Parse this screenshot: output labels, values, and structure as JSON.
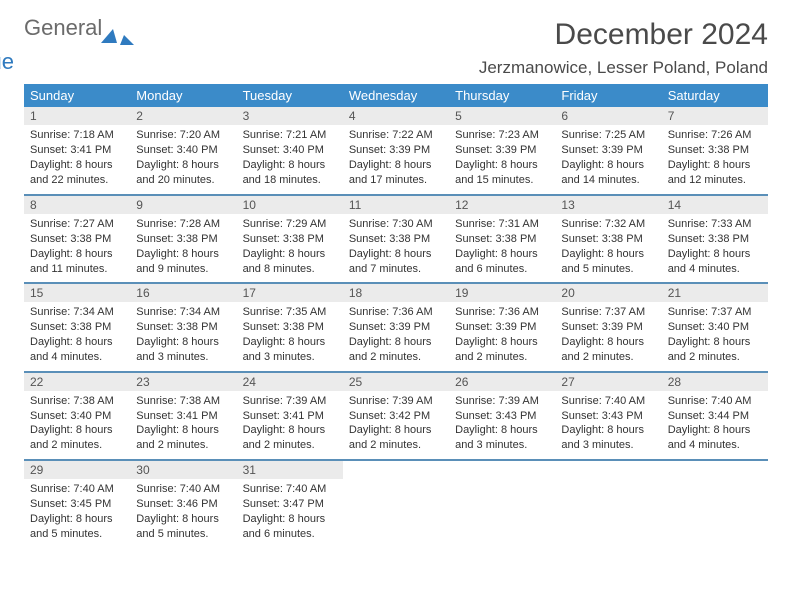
{
  "brand": {
    "text1": "General",
    "text2": "Blue"
  },
  "header": {
    "month_title": "December 2024",
    "location": "Jerzmanowice, Lesser Poland, Poland"
  },
  "style": {
    "header_bg": "#3b8bc9",
    "header_fg": "#ffffff",
    "row_divider": "#5a8fb8",
    "daynum_bg": "#ebebeb",
    "body_fontsize": 11
  },
  "weekdays": [
    "Sunday",
    "Monday",
    "Tuesday",
    "Wednesday",
    "Thursday",
    "Friday",
    "Saturday"
  ],
  "days": [
    {
      "n": "1",
      "sr": "7:18 AM",
      "ss": "3:41 PM",
      "dl": "8 hours and 22 minutes."
    },
    {
      "n": "2",
      "sr": "7:20 AM",
      "ss": "3:40 PM",
      "dl": "8 hours and 20 minutes."
    },
    {
      "n": "3",
      "sr": "7:21 AM",
      "ss": "3:40 PM",
      "dl": "8 hours and 18 minutes."
    },
    {
      "n": "4",
      "sr": "7:22 AM",
      "ss": "3:39 PM",
      "dl": "8 hours and 17 minutes."
    },
    {
      "n": "5",
      "sr": "7:23 AM",
      "ss": "3:39 PM",
      "dl": "8 hours and 15 minutes."
    },
    {
      "n": "6",
      "sr": "7:25 AM",
      "ss": "3:39 PM",
      "dl": "8 hours and 14 minutes."
    },
    {
      "n": "7",
      "sr": "7:26 AM",
      "ss": "3:38 PM",
      "dl": "8 hours and 12 minutes."
    },
    {
      "n": "8",
      "sr": "7:27 AM",
      "ss": "3:38 PM",
      "dl": "8 hours and 11 minutes."
    },
    {
      "n": "9",
      "sr": "7:28 AM",
      "ss": "3:38 PM",
      "dl": "8 hours and 9 minutes."
    },
    {
      "n": "10",
      "sr": "7:29 AM",
      "ss": "3:38 PM",
      "dl": "8 hours and 8 minutes."
    },
    {
      "n": "11",
      "sr": "7:30 AM",
      "ss": "3:38 PM",
      "dl": "8 hours and 7 minutes."
    },
    {
      "n": "12",
      "sr": "7:31 AM",
      "ss": "3:38 PM",
      "dl": "8 hours and 6 minutes."
    },
    {
      "n": "13",
      "sr": "7:32 AM",
      "ss": "3:38 PM",
      "dl": "8 hours and 5 minutes."
    },
    {
      "n": "14",
      "sr": "7:33 AM",
      "ss": "3:38 PM",
      "dl": "8 hours and 4 minutes."
    },
    {
      "n": "15",
      "sr": "7:34 AM",
      "ss": "3:38 PM",
      "dl": "8 hours and 4 minutes."
    },
    {
      "n": "16",
      "sr": "7:34 AM",
      "ss": "3:38 PM",
      "dl": "8 hours and 3 minutes."
    },
    {
      "n": "17",
      "sr": "7:35 AM",
      "ss": "3:38 PM",
      "dl": "8 hours and 3 minutes."
    },
    {
      "n": "18",
      "sr": "7:36 AM",
      "ss": "3:39 PM",
      "dl": "8 hours and 2 minutes."
    },
    {
      "n": "19",
      "sr": "7:36 AM",
      "ss": "3:39 PM",
      "dl": "8 hours and 2 minutes."
    },
    {
      "n": "20",
      "sr": "7:37 AM",
      "ss": "3:39 PM",
      "dl": "8 hours and 2 minutes."
    },
    {
      "n": "21",
      "sr": "7:37 AM",
      "ss": "3:40 PM",
      "dl": "8 hours and 2 minutes."
    },
    {
      "n": "22",
      "sr": "7:38 AM",
      "ss": "3:40 PM",
      "dl": "8 hours and 2 minutes."
    },
    {
      "n": "23",
      "sr": "7:38 AM",
      "ss": "3:41 PM",
      "dl": "8 hours and 2 minutes."
    },
    {
      "n": "24",
      "sr": "7:39 AM",
      "ss": "3:41 PM",
      "dl": "8 hours and 2 minutes."
    },
    {
      "n": "25",
      "sr": "7:39 AM",
      "ss": "3:42 PM",
      "dl": "8 hours and 2 minutes."
    },
    {
      "n": "26",
      "sr": "7:39 AM",
      "ss": "3:43 PM",
      "dl": "8 hours and 3 minutes."
    },
    {
      "n": "27",
      "sr": "7:40 AM",
      "ss": "3:43 PM",
      "dl": "8 hours and 3 minutes."
    },
    {
      "n": "28",
      "sr": "7:40 AM",
      "ss": "3:44 PM",
      "dl": "8 hours and 4 minutes."
    },
    {
      "n": "29",
      "sr": "7:40 AM",
      "ss": "3:45 PM",
      "dl": "8 hours and 5 minutes."
    },
    {
      "n": "30",
      "sr": "7:40 AM",
      "ss": "3:46 PM",
      "dl": "8 hours and 5 minutes."
    },
    {
      "n": "31",
      "sr": "7:40 AM",
      "ss": "3:47 PM",
      "dl": "8 hours and 6 minutes."
    }
  ],
  "labels": {
    "sunrise": "Sunrise:",
    "sunset": "Sunset:",
    "daylight": "Daylight:"
  }
}
